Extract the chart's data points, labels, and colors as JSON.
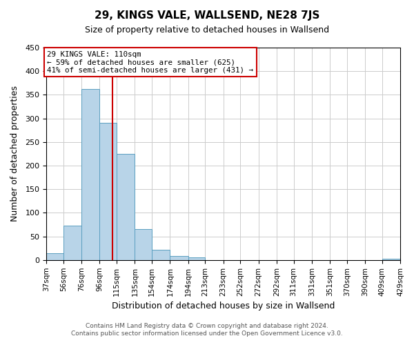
{
  "title": "29, KINGS VALE, WALLSEND, NE28 7JS",
  "subtitle": "Size of property relative to detached houses in Wallsend",
  "xlabel": "Distribution of detached houses by size in Wallsend",
  "ylabel": "Number of detached properties",
  "bar_color": "#b8d4e8",
  "bar_edge_color": "#5a9fc0",
  "vline_color": "#cc0000",
  "vline_x": 110,
  "annotation_title": "29 KINGS VALE: 110sqm",
  "annotation_line1": "← 59% of detached houses are smaller (625)",
  "annotation_line2": "41% of semi-detached houses are larger (431) →",
  "bin_edges": [
    37,
    56,
    76,
    96,
    115,
    135,
    154,
    174,
    194,
    213,
    233,
    252,
    272,
    292,
    311,
    331,
    351,
    370,
    390,
    409,
    429
  ],
  "bin_counts": [
    15,
    73,
    362,
    291,
    225,
    66,
    22,
    8,
    5,
    0,
    0,
    0,
    0,
    0,
    0,
    0,
    0,
    0,
    0,
    3
  ],
  "ylim": [
    0,
    450
  ],
  "yticks": [
    0,
    50,
    100,
    150,
    200,
    250,
    300,
    350,
    400,
    450
  ],
  "tick_labels": [
    "37sqm",
    "56sqm",
    "76sqm",
    "96sqm",
    "115sqm",
    "135sqm",
    "154sqm",
    "174sqm",
    "194sqm",
    "213sqm",
    "233sqm",
    "252sqm",
    "272sqm",
    "292sqm",
    "311sqm",
    "331sqm",
    "351sqm",
    "370sqm",
    "390sqm",
    "409sqm",
    "429sqm"
  ],
  "footer_line1": "Contains HM Land Registry data © Crown copyright and database right 2024.",
  "footer_line2": "Contains public sector information licensed under the Open Government Licence v3.0.",
  "annotation_box_color": "#ffffff",
  "annotation_box_edge": "#cc0000",
  "bg_color": "#ffffff",
  "grid_color": "#cccccc"
}
